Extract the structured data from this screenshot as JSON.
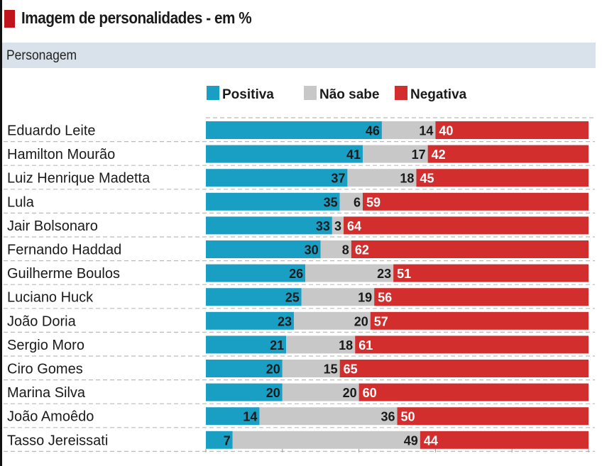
{
  "title": "Imagem de personalidades - em %",
  "header": "Personagem",
  "chart_data": {
    "type": "bar",
    "stacked": true,
    "orientation": "horizontal",
    "title": "Imagem de personalidades - em %",
    "xlim": [
      0,
      100
    ],
    "legend_position": "top",
    "categories": [
      "Eduardo Leite",
      "Hamilton Mourão",
      "Luiz Henrique Madetta",
      "Lula",
      "Jair Bolsonaro",
      "Fernando Haddad",
      "Guilherme Boulos",
      "Luciano Huck",
      "João Doria",
      "Sergio Moro",
      "Ciro Gomes",
      "Marina Silva",
      "João Amoêdo",
      "Tasso Jereissati"
    ],
    "series": [
      {
        "name": "Positiva",
        "color": "#1a9fc4",
        "values": [
          46,
          41,
          37,
          35,
          33,
          30,
          26,
          25,
          23,
          21,
          20,
          20,
          14,
          7
        ]
      },
      {
        "name": "Não sabe",
        "color": "#c8c8c8",
        "values": [
          14,
          17,
          18,
          6,
          3,
          8,
          23,
          19,
          20,
          18,
          15,
          20,
          36,
          49
        ]
      },
      {
        "name": "Negativa",
        "color": "#d22e2e",
        "values": [
          40,
          42,
          45,
          59,
          64,
          62,
          51,
          56,
          57,
          61,
          65,
          60,
          50,
          44
        ]
      }
    ]
  }
}
